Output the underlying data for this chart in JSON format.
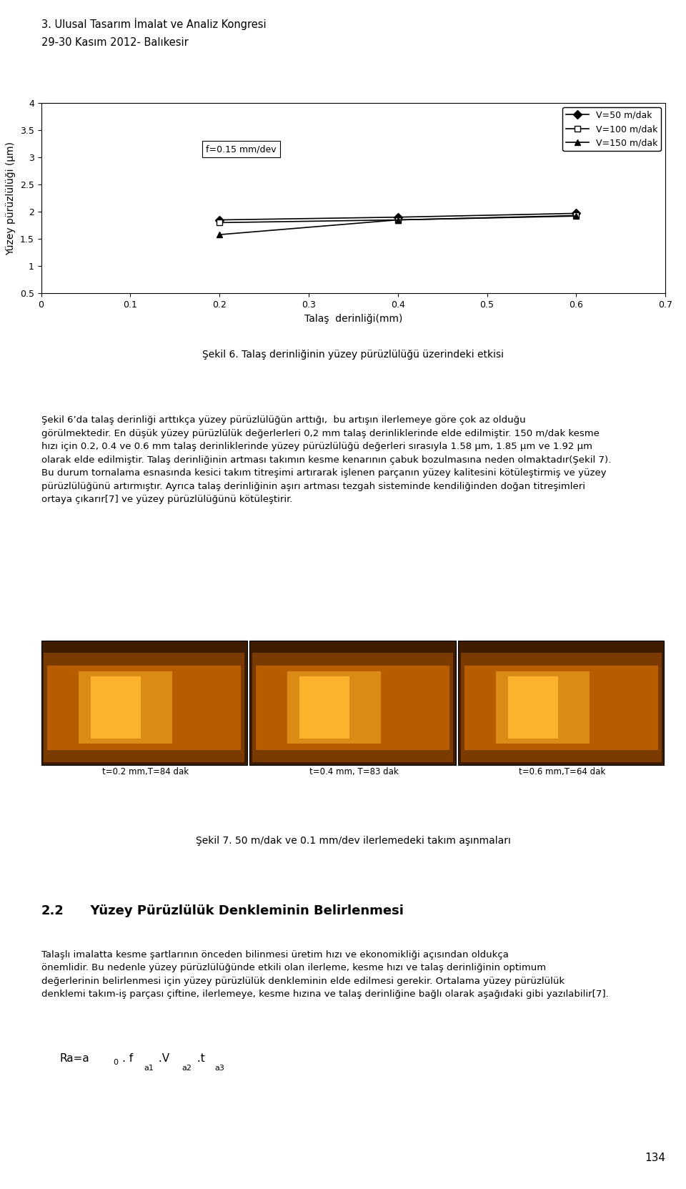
{
  "title": "",
  "xlabel": "Talaş  derinliği(mm)",
  "ylabel": "Yüzey pürüzlülüği (µm)",
  "xlim": [
    0,
    0.7
  ],
  "ylim": [
    0.5,
    4.0
  ],
  "xticks": [
    0,
    0.1,
    0.2,
    0.3,
    0.4,
    0.5,
    0.6,
    0.7
  ],
  "yticks": [
    0.5,
    1.0,
    1.5,
    2.0,
    2.5,
    3.0,
    3.5,
    4.0
  ],
  "annotation": "f=0.15 mm/dev",
  "series": [
    {
      "label": "V=50 m/dak",
      "x": [
        0.2,
        0.4,
        0.6
      ],
      "y": [
        1.85,
        1.9,
        1.97
      ],
      "marker": "D",
      "marker_size": 6,
      "color": "black",
      "linestyle": "-",
      "linewidth": 1.2,
      "markerfacecolor": "black"
    },
    {
      "label": "V=100 m/dak",
      "x": [
        0.2,
        0.4,
        0.6
      ],
      "y": [
        1.8,
        1.85,
        1.93
      ],
      "marker": "s",
      "marker_size": 6,
      "color": "black",
      "linestyle": "-",
      "linewidth": 1.2,
      "markerfacecolor": "white"
    },
    {
      "label": "V=150 m/dak",
      "x": [
        0.2,
        0.4,
        0.6
      ],
      "y": [
        1.58,
        1.85,
        1.92
      ],
      "marker": "^",
      "marker_size": 6,
      "color": "black",
      "linestyle": "-",
      "linewidth": 1.2,
      "markerfacecolor": "black"
    }
  ],
  "figure_width": 9.6,
  "figure_height": 16.63,
  "header_line1": "3. Ulusal Tasarım İmalat ve Analiz Kongresi",
  "header_line2": "29-30 Kasım 2012- Balıkesir",
  "fig6_caption": "Şekil 6. Talaş derinliğinin yüzey pürüzlülüğü üzerindeki etkisi",
  "page_number": "134",
  "body_text1_parts": [
    "Şekil 6’da talaş derinliği arttıkça yüzey pürüzlülüğün arttığı,  bu artışın ilerlemeye göre çok az olduğu",
    "görülmektedir. En düşük yüzey pürüzlülük değerlerleri 0,2 mm talaş derinliklerinde elde edilmiştir. 150 m/dak kesme",
    "hızı için 0.2, 0.4 ve 0.6 mm talaş derinliklerinde yüzey pürüzlülüğü değerleri sırasıyla 1.58 µm, 1.85 µm ve 1.92 µm",
    "olarak elde edilmiştir. Talaş derinliğinin artması takımın kesme kenarının çabuk bozulmasına neden olmaktadır(Şekil 7).",
    "Bu durum tornalama esnasında kesici takım titreşimi artırarak işlenen parçanın yüzey kalitesini kötüleştirmiş ve yüzey",
    "pürüzlülüğünü artırmıştır. Ayrıca talaş derinliğinin aşırı artması tezgah sisteminde kendiliğinden doğan titreşimleri",
    "ortaya çıkarır[7] ve yüzey pürüzlülüğünü kötüleştirir."
  ],
  "fig7_caption": "Şekil 7. 50 m/dak ve 0.1 mm/dev ilerlemedeki takım aşınmaları",
  "img_labels": [
    "t=0.2 mm,T=84 dak",
    "t=0.4 mm, T=83 dak",
    "t=0.6 mm,T=64 dak"
  ],
  "section_title": "2.2",
  "section_title_rest": "  Yüzey Pürüzlülük Denkleminin Belirlenmesi",
  "body_text2_parts": [
    "Talaşlı imalatta kesme şartlarının önceden bilinmesi üretim hızı ve ekonomikliği açısından oldukça",
    "önemlidir. Bu nedenle yüzey pürüzlülüğünde etkili olan ilerleme, kesme hızı ve talaş derinliğinin optimum",
    "değerlerinin belirlenmesi için yüzey pürüzlülük denkleminin elde edilmesi gerekir. Ortalama yüzey pürüzlülük",
    "denklemi takım-iş parçası çiftine, ilerlemeye, kesme hızına ve talaş derinliğine bağlı olarak aşağıdaki gibi yazılabilir[7]."
  ],
  "formula_base": "Ra=a",
  "formula_sub0": "0",
  "formula_rest": ". f",
  "formula_sup1": "a1",
  "formula_mid": " .V",
  "formula_sup2": "a2",
  "formula_end": " .t ",
  "formula_sup3": "a3"
}
